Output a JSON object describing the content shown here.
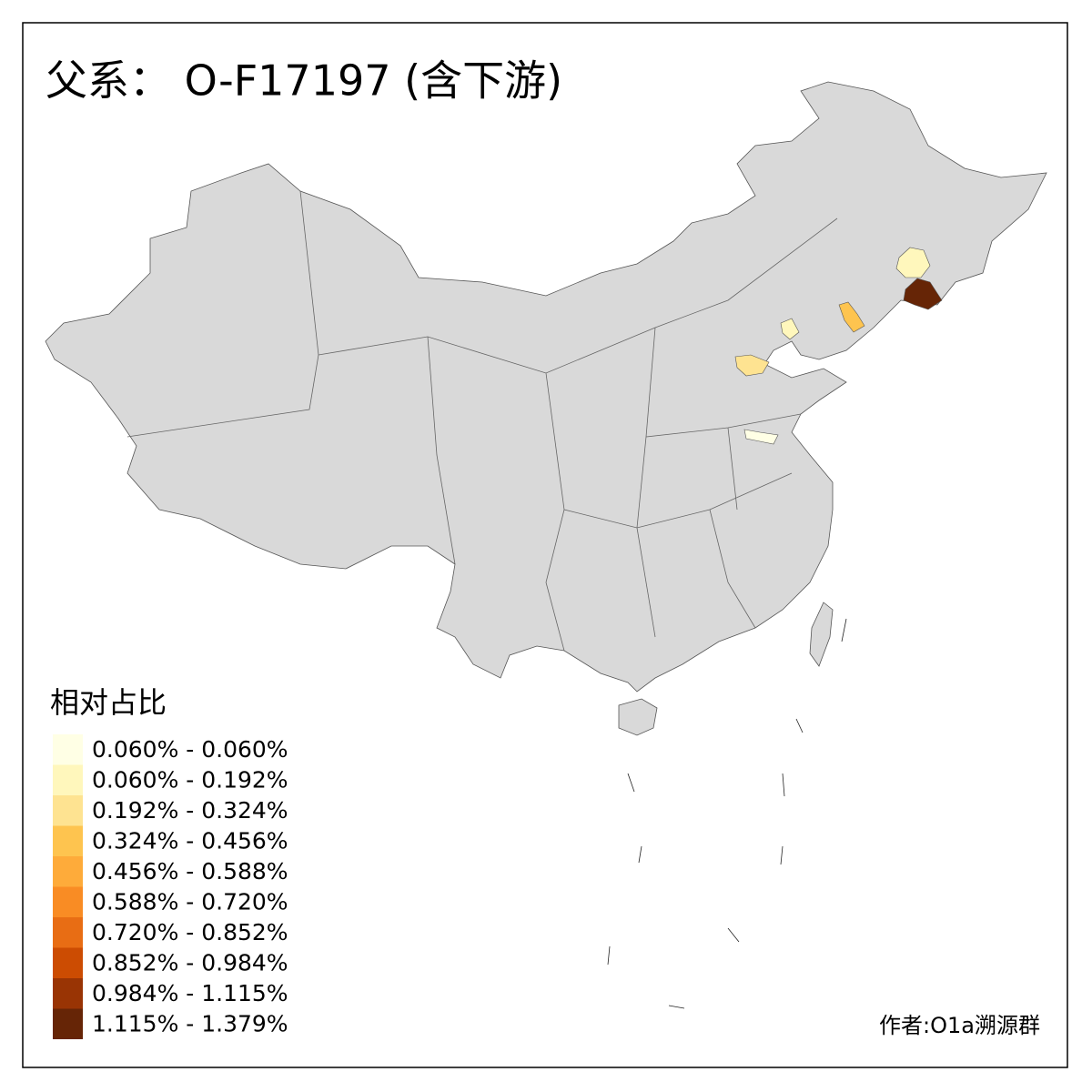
{
  "header": {
    "title": "父系： O-F17197 (含下游)"
  },
  "legend": {
    "title": "相对占比",
    "items": [
      {
        "label": "0.060% - 0.060%",
        "color": "#ffffe5"
      },
      {
        "label": "0.060% - 0.192%",
        "color": "#fff7bc"
      },
      {
        "label": "0.192% - 0.324%",
        "color": "#fee391"
      },
      {
        "label": "0.324% - 0.456%",
        "color": "#fec44f"
      },
      {
        "label": "0.456% - 0.588%",
        "color": "#feab3a"
      },
      {
        "label": "0.588% - 0.720%",
        "color": "#f98c24"
      },
      {
        "label": "0.720% - 0.852%",
        "color": "#e86d14"
      },
      {
        "label": "0.852% - 0.984%",
        "color": "#cc4c02"
      },
      {
        "label": "0.984% - 1.115%",
        "color": "#993404"
      },
      {
        "label": "1.115% - 1.379%",
        "color": "#662506"
      }
    ]
  },
  "footer": {
    "author": "作者:O1a溯源群"
  }
}
